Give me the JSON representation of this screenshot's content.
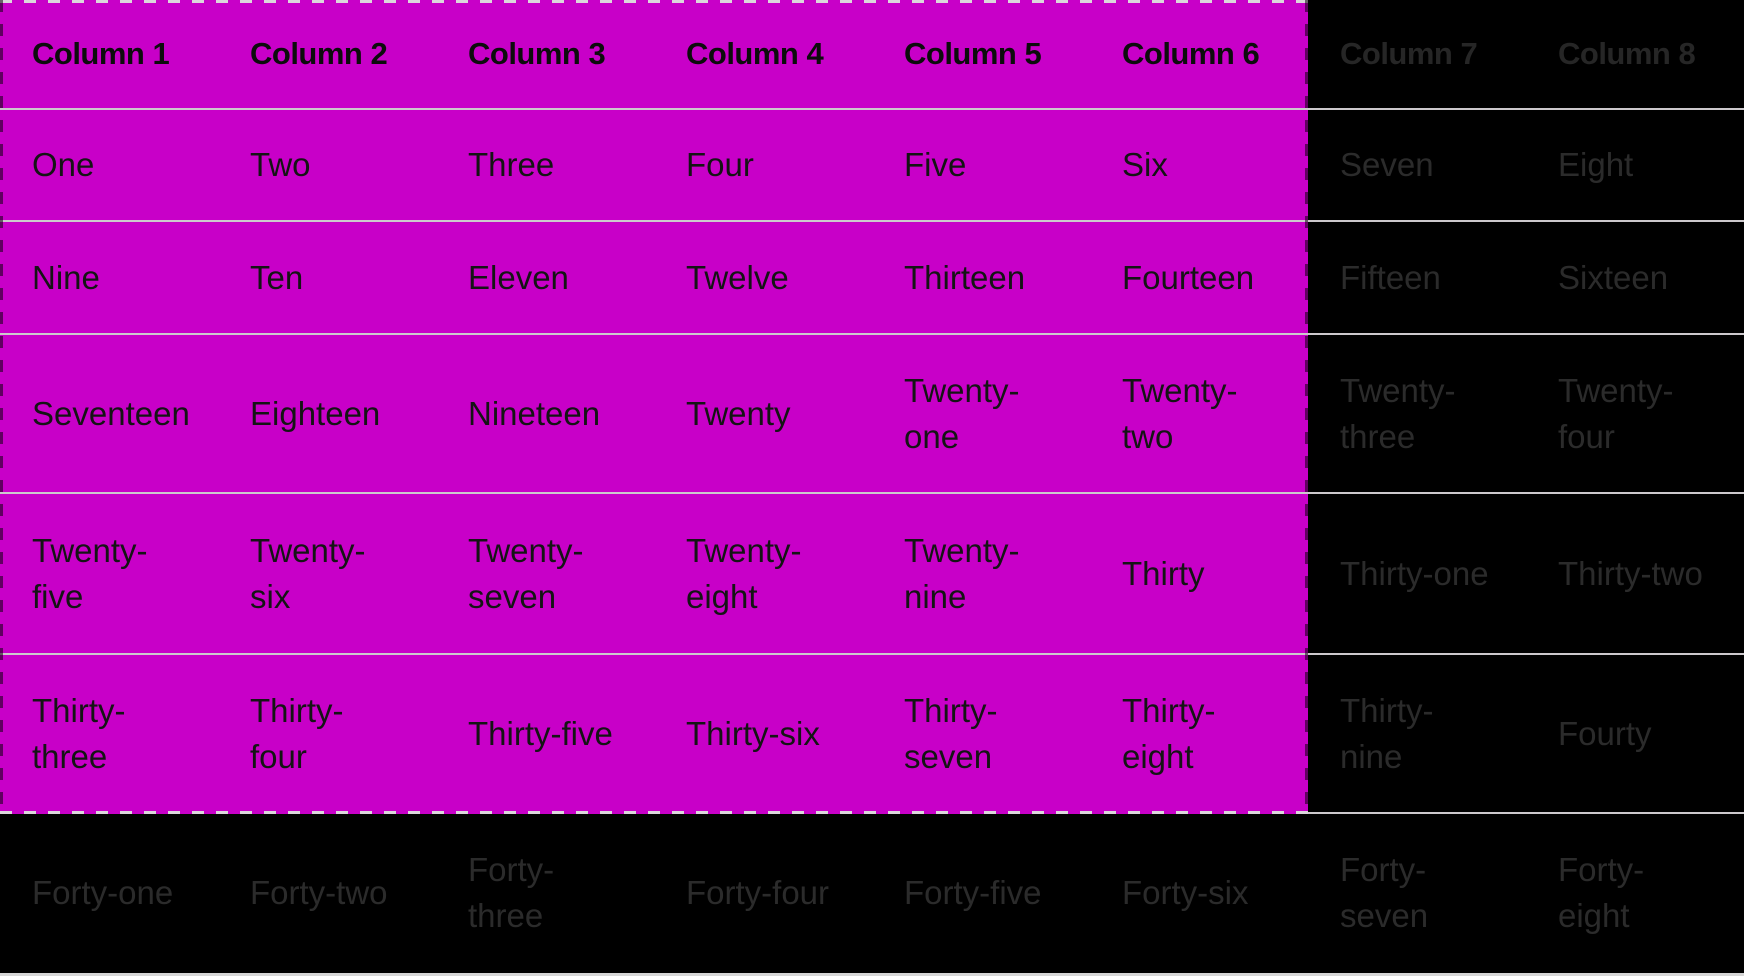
{
  "table": {
    "columns": [
      "Column 1",
      "Column 2",
      "Column 3",
      "Column 4",
      "Column 5",
      "Column 6",
      "Column 7",
      "Column 8"
    ],
    "rows": [
      [
        "One",
        "Two",
        "Three",
        "Four",
        "Five",
        "Six",
        "Seven",
        "Eight"
      ],
      [
        "Nine",
        "Ten",
        "Eleven",
        "Twelve",
        "Thirteen",
        "Fourteen",
        "Fifteen",
        "Sixteen"
      ],
      [
        "Seventeen",
        "Eighteen",
        "Nineteen",
        "Twenty",
        "Twenty-\none",
        "Twenty-\ntwo",
        "Twenty-\nthree",
        "Twenty-\nfour"
      ],
      [
        "Twenty-\nfive",
        "Twenty-\nsix",
        "Twenty-\nseven",
        "Twenty-\neight",
        "Twenty-\nnine",
        "Thirty",
        "Thirty-one",
        "Thirty-two"
      ],
      [
        "Thirty-\nthree",
        "Thirty-\nfour",
        "Thirty-five",
        "Thirty-six",
        "Thirty-\nseven",
        "Thirty-\neight",
        "Thirty-\nnine",
        "Fourty"
      ],
      [
        "Forty-one",
        "Forty-two",
        "Forty-\nthree",
        "Forty-four",
        "Forty-five",
        "Forty-six",
        "Forty-\nseven",
        "Forty-\neight"
      ]
    ],
    "selection": {
      "includes_header": true,
      "first_column": 1,
      "last_column": 6,
      "first_body_row": 1,
      "last_body_row": 5,
      "highlight_color": "#c800c8",
      "dash_light_color": "#dcd6dc",
      "dash_dark_color": "rgba(10,0,10,0.55)"
    },
    "colors": {
      "background": "#000000",
      "separator_line": "#cdc9cd",
      "bottom_border": "#d6d6d6",
      "selected_text": "#141414",
      "dimmed_text": "#2b2b2b"
    }
  }
}
